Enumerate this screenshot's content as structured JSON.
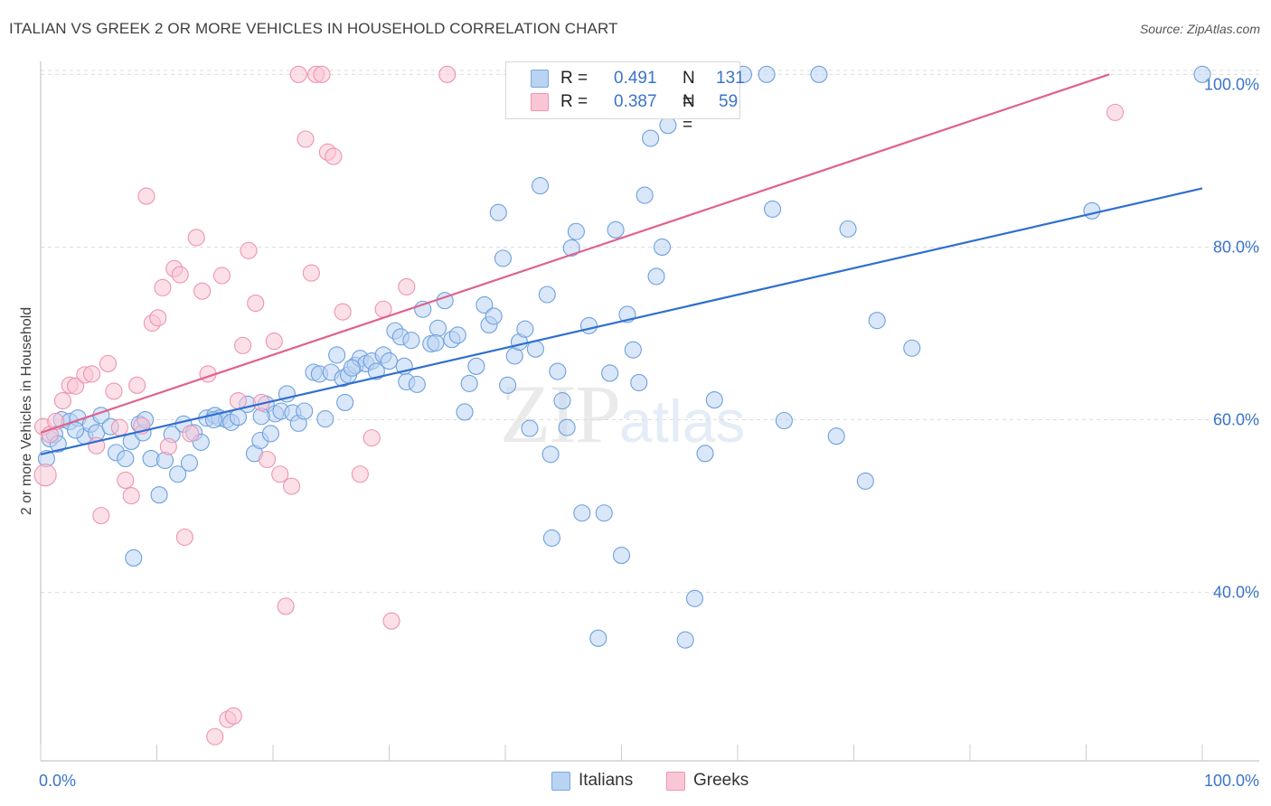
{
  "header": {
    "title": "ITALIAN VS GREEK 2 OR MORE VEHICLES IN HOUSEHOLD CORRELATION CHART",
    "source": "Source: ZipAtlas.com"
  },
  "watermark": {
    "zip": "ZIP",
    "atlas": "atlas"
  },
  "legend": {
    "r_label": "R =",
    "n_label": "N =",
    "rows": [
      {
        "name": "Italians",
        "r": "0.491",
        "n": "131",
        "color": "#a8c8f0",
        "border": "#7aa7e0"
      },
      {
        "name": "Greeks",
        "r": "0.387",
        "n": "59",
        "color": "#f8bfd0",
        "border": "#ee93b0"
      }
    ]
  },
  "chart_data": {
    "type": "scatter",
    "title": "ITALIAN VS GREEK 2 OR MORE VEHICLES IN HOUSEHOLD CORRELATION CHART",
    "xlabel": "",
    "ylabel": "2 or more Vehicles in Household",
    "xlim": [
      0,
      100
    ],
    "ylim": [
      20.5,
      101.5
    ],
    "x_tick_labels": [
      "0.0%",
      "100.0%"
    ],
    "y_ticks": [
      {
        "value": 40,
        "label": "40.0%"
      },
      {
        "value": 60,
        "label": "60.0%"
      },
      {
        "value": 80,
        "label": "80.0%"
      },
      {
        "value": 100,
        "label": "100.0%"
      }
    ],
    "grid": true,
    "legend_position": "top-center",
    "series": [
      {
        "name": "Italians",
        "color": "#6fa0df",
        "fill": "#b9d3f3",
        "trendline": {
          "x": [
            0,
            100
          ],
          "y": [
            56.0,
            86.8
          ],
          "color": "#2f6fcf"
        },
        "points": [
          [
            0.5,
            55.5
          ],
          [
            0.8,
            57.8
          ],
          [
            1.2,
            58.3
          ],
          [
            1.8,
            60.0
          ],
          [
            2.5,
            59.8
          ],
          [
            3.2,
            60.2
          ],
          [
            3.8,
            58.1
          ],
          [
            4.3,
            59.5
          ],
          [
            5.2,
            60.5
          ],
          [
            4.8,
            58.5
          ],
          [
            6.0,
            59.2
          ],
          [
            6.5,
            56.2
          ],
          [
            7.3,
            55.5
          ],
          [
            7.8,
            57.5
          ],
          [
            8.5,
            59.5
          ],
          [
            8.8,
            58.5
          ],
          [
            9.5,
            55.5
          ],
          [
            10.2,
            51.3
          ],
          [
            10.7,
            55.3
          ],
          [
            11.3,
            58.3
          ],
          [
            11.8,
            53.7
          ],
          [
            12.3,
            59.5
          ],
          [
            12.8,
            55.0
          ],
          [
            13.2,
            58.5
          ],
          [
            13.8,
            57.4
          ],
          [
            14.3,
            60.2
          ],
          [
            15.0,
            60.5
          ],
          [
            15.4,
            60.2
          ],
          [
            16.0,
            60.0
          ],
          [
            16.4,
            59.7
          ],
          [
            17.0,
            60.3
          ],
          [
            17.8,
            61.8
          ],
          [
            18.4,
            56.1
          ],
          [
            18.9,
            57.6
          ],
          [
            19.4,
            61.8
          ],
          [
            19.8,
            58.4
          ],
          [
            20.2,
            60.7
          ],
          [
            20.7,
            61.0
          ],
          [
            21.2,
            63.0
          ],
          [
            21.7,
            60.8
          ],
          [
            22.2,
            59.6
          ],
          [
            22.7,
            61.0
          ],
          [
            23.5,
            65.5
          ],
          [
            24.0,
            65.3
          ],
          [
            24.5,
            60.1
          ],
          [
            25.0,
            65.5
          ],
          [
            25.5,
            67.5
          ],
          [
            26.0,
            64.8
          ],
          [
            26.5,
            65.2
          ],
          [
            27.1,
            66.3
          ],
          [
            27.5,
            67.1
          ],
          [
            28.0,
            66.5
          ],
          [
            28.5,
            66.8
          ],
          [
            28.9,
            65.6
          ],
          [
            29.5,
            67.5
          ],
          [
            30.0,
            66.8
          ],
          [
            30.5,
            70.3
          ],
          [
            31.0,
            69.6
          ],
          [
            31.5,
            64.4
          ],
          [
            31.9,
            69.2
          ],
          [
            32.4,
            64.1
          ],
          [
            32.9,
            72.8
          ],
          [
            33.6,
            68.8
          ],
          [
            34.2,
            70.6
          ],
          [
            34.8,
            73.8
          ],
          [
            35.4,
            69.3
          ],
          [
            35.9,
            69.8
          ],
          [
            36.5,
            60.9
          ],
          [
            36.9,
            64.2
          ],
          [
            37.5,
            66.2
          ],
          [
            38.2,
            73.3
          ],
          [
            38.6,
            71.0
          ],
          [
            39.0,
            72.0
          ],
          [
            39.4,
            84.0
          ],
          [
            39.8,
            78.7
          ],
          [
            40.2,
            64.0
          ],
          [
            40.8,
            67.4
          ],
          [
            41.2,
            69.0
          ],
          [
            41.7,
            70.5
          ],
          [
            42.1,
            59.0
          ],
          [
            42.6,
            68.2
          ],
          [
            43.0,
            87.1
          ],
          [
            43.6,
            74.5
          ],
          [
            44.0,
            46.3
          ],
          [
            44.5,
            65.6
          ],
          [
            44.9,
            62.2
          ],
          [
            45.3,
            59.1
          ],
          [
            45.7,
            79.9
          ],
          [
            46.1,
            81.8
          ],
          [
            46.6,
            49.2
          ],
          [
            47.2,
            70.9
          ],
          [
            48.0,
            34.7
          ],
          [
            48.5,
            49.2
          ],
          [
            49.0,
            65.4
          ],
          [
            49.5,
            82.0
          ],
          [
            50.0,
            44.3
          ],
          [
            50.5,
            72.2
          ],
          [
            51.0,
            68.1
          ],
          [
            51.5,
            64.3
          ],
          [
            52.0,
            86.0
          ],
          [
            52.5,
            92.6
          ],
          [
            53.0,
            76.6
          ],
          [
            53.5,
            80.0
          ],
          [
            54.0,
            94.1
          ],
          [
            55.5,
            34.5
          ],
          [
            56.3,
            39.3
          ],
          [
            57.2,
            56.1
          ],
          [
            58.0,
            62.3
          ],
          [
            60.5,
            100.0
          ],
          [
            62.5,
            100.0
          ],
          [
            63.0,
            84.4
          ],
          [
            64.0,
            59.9
          ],
          [
            67.0,
            100.0
          ],
          [
            68.5,
            58.1
          ],
          [
            69.5,
            82.1
          ],
          [
            71.0,
            52.9
          ],
          [
            72.0,
            71.5
          ],
          [
            75.0,
            68.3
          ],
          [
            90.5,
            84.2
          ],
          [
            100.0,
            100.0
          ],
          [
            1.5,
            57.2
          ],
          [
            3.0,
            58.8
          ],
          [
            9.0,
            60.0
          ],
          [
            14.9,
            60.0
          ],
          [
            19.0,
            60.4
          ],
          [
            26.8,
            66.0
          ],
          [
            31.3,
            66.2
          ],
          [
            34.0,
            68.9
          ],
          [
            43.9,
            56.0
          ],
          [
            26.2,
            62.0
          ],
          [
            8.0,
            44.0
          ]
        ]
      },
      {
        "name": "Greeks",
        "color": "#ee93b0",
        "fill": "#f9c6d6",
        "trendline": {
          "x": [
            0,
            92
          ],
          "y": [
            58.5,
            100.0
          ],
          "color": "#e0628c"
        },
        "points": [
          [
            0.2,
            59.2
          ],
          [
            0.4,
            53.6
          ],
          [
            0.8,
            58.3
          ],
          [
            1.3,
            59.8
          ],
          [
            1.9,
            62.2
          ],
          [
            2.5,
            64.0
          ],
          [
            3.0,
            63.9
          ],
          [
            3.8,
            65.2
          ],
          [
            4.4,
            65.3
          ],
          [
            4.8,
            57.0
          ],
          [
            5.2,
            48.9
          ],
          [
            5.8,
            66.5
          ],
          [
            6.3,
            63.3
          ],
          [
            6.8,
            59.1
          ],
          [
            7.3,
            53.0
          ],
          [
            7.8,
            51.2
          ],
          [
            8.3,
            64.0
          ],
          [
            8.7,
            59.3
          ],
          [
            9.1,
            85.9
          ],
          [
            9.6,
            71.2
          ],
          [
            10.1,
            71.8
          ],
          [
            10.5,
            75.3
          ],
          [
            11.0,
            56.9
          ],
          [
            11.5,
            77.5
          ],
          [
            12.0,
            76.8
          ],
          [
            12.4,
            46.4
          ],
          [
            12.9,
            58.4
          ],
          [
            13.4,
            81.1
          ],
          [
            13.9,
            74.9
          ],
          [
            14.4,
            65.3
          ],
          [
            15.0,
            23.3
          ],
          [
            15.6,
            76.7
          ],
          [
            16.1,
            25.3
          ],
          [
            16.6,
            25.7
          ],
          [
            17.0,
            62.2
          ],
          [
            17.4,
            68.6
          ],
          [
            17.9,
            79.6
          ],
          [
            18.5,
            73.5
          ],
          [
            19.0,
            62.0
          ],
          [
            19.5,
            55.4
          ],
          [
            20.1,
            69.1
          ],
          [
            20.6,
            53.7
          ],
          [
            21.1,
            38.4
          ],
          [
            21.6,
            52.3
          ],
          [
            22.2,
            100.0
          ],
          [
            22.8,
            92.5
          ],
          [
            23.3,
            77.0
          ],
          [
            23.7,
            100.0
          ],
          [
            24.2,
            100.0
          ],
          [
            24.7,
            91.0
          ],
          [
            25.2,
            90.5
          ],
          [
            26.0,
            72.5
          ],
          [
            27.5,
            53.7
          ],
          [
            28.5,
            57.9
          ],
          [
            29.5,
            72.8
          ],
          [
            30.2,
            36.7
          ],
          [
            31.5,
            75.4
          ],
          [
            35.0,
            100.0
          ],
          [
            92.5,
            95.6
          ]
        ]
      }
    ]
  }
}
